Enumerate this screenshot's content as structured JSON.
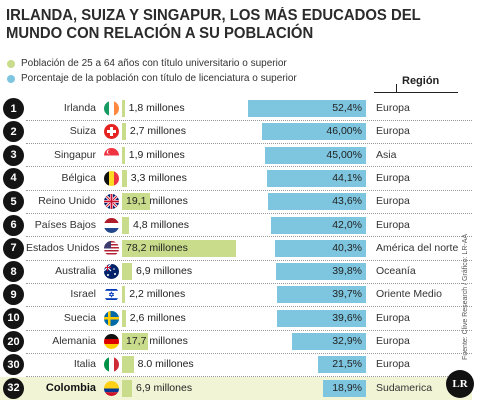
{
  "chart_data": {
    "type": "bar",
    "title": "IRLANDA, SUIZA Y SINGAPUR, LOS MÁS EDUCADOS DEL MUNDO CON RELACIÓN A SU POBLACIÓN",
    "legend": [
      {
        "label": "Población de 25 a 64 años con título universitario o superior",
        "color": "#c9dc8b"
      },
      {
        "label": "Porcentaje de la población con título de licenciatura o superior",
        "color": "#7ec6e0"
      }
    ],
    "region_header": "Región",
    "categories": [
      "Irlanda",
      "Suiza",
      "Singapur",
      "Bélgica",
      "Reino Unido",
      "Países Bajos",
      "Estados Unidos",
      "Australia",
      "Israel",
      "Suecia",
      "Alemania",
      "Italia",
      "Colombia"
    ],
    "ranks": [
      "1",
      "2",
      "3",
      "4",
      "5",
      "6",
      "7",
      "8",
      "9",
      "10",
      "20",
      "30",
      "32"
    ],
    "highlight": "Colombia",
    "series": [
      {
        "name": "Población de 25 a 64 años con título universitario o superior",
        "values": [
          1.8,
          2.7,
          1.9,
          3.3,
          19.1,
          4.8,
          78.2,
          6.9,
          2.2,
          2.6,
          17.7,
          8.0,
          6.9
        ],
        "labels": [
          "1,8 millones",
          "2,7 millones",
          "1,9 millones",
          "3,3 millones",
          "19,1 millones",
          "4,8 millones",
          "78,2 millones",
          "6,9 millones",
          "2,2 millones",
          "2,6 millones",
          "17,7 millones",
          "8.0 millones",
          "6,9 millones"
        ]
      },
      {
        "name": "Porcentaje de la población con título de licenciatura o superior",
        "values": [
          52.4,
          46.0,
          45.0,
          44.1,
          43.6,
          42.0,
          40.3,
          39.8,
          39.7,
          39.6,
          32.9,
          21.5,
          18.9
        ],
        "labels": [
          "52,4%",
          "46,00%",
          "45,00%",
          "44,1%",
          "43,6%",
          "42,0%",
          "40,3%",
          "39,8%",
          "39,7%",
          "39,6%",
          "32,9%",
          "21,5%",
          "18,9%"
        ]
      }
    ],
    "regions": [
      "Europa",
      "Europa",
      "Asia",
      "Europa",
      "Europa",
      "Europa",
      "América del norte",
      "Oceanía",
      "Oriente Medio",
      "Europa",
      "Europa",
      "Europa",
      "Sudamerica"
    ],
    "pop_max": 78.2,
    "pct_max": 52.4
  },
  "source": "Fuente: Clive Research / Gráfico: LR-AA",
  "logo_text": "LR",
  "colors": {
    "pop_bar": "#c9dc8b",
    "pct_bar": "#7ec6e0",
    "highlight_row": "#f1f5d6",
    "rank_circle": "#141414"
  }
}
